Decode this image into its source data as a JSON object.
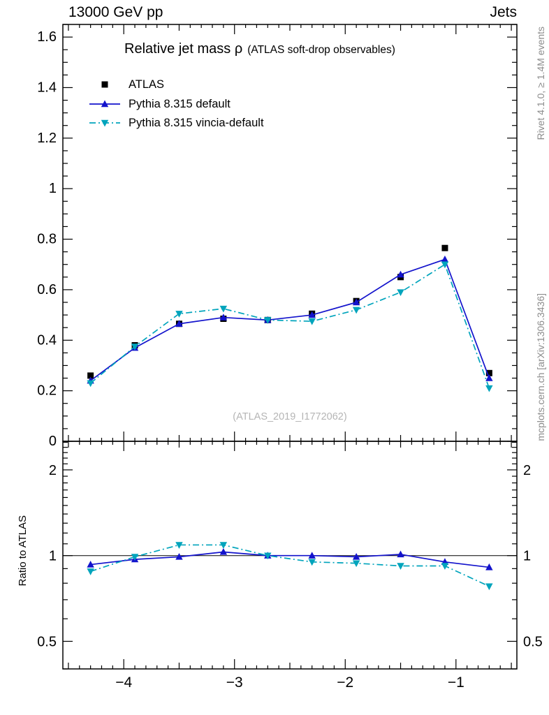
{
  "header": {
    "left": "13000 GeV pp",
    "right": "Jets"
  },
  "title": {
    "main": "Relative jet mass ρ",
    "sub": "(ATLAS soft-drop observables)"
  },
  "legend": [
    {
      "label": "ATLAS"
    },
    {
      "label": "Pythia 8.315 default"
    },
    {
      "label": "Pythia 8.315 vincia-default"
    }
  ],
  "watermark": "(ATLAS_2019_I1772062)",
  "side": {
    "rivet": "Rivet 4.1.0, ≥ 1.4M events",
    "mcplots": "mcplots.cern.ch [arXiv:1306.3436]"
  },
  "ratio_axis_label": "Ratio to ATLAS",
  "colors": {
    "atlas": "#000000",
    "pythia_default": "#1313cc",
    "pythia_vincia": "#00a4bc",
    "watermark": "#b5b5b5",
    "side_text": "#8c8c8c"
  },
  "chart_data": {
    "type": "line",
    "title": "Relative jet mass ρ (ATLAS soft-drop observables)",
    "xlabel": "",
    "ylabel": "",
    "legend_position": "top-left",
    "grid": false,
    "xlim": [
      -4.55,
      -0.45
    ],
    "xticks": [
      -4,
      -3,
      -2,
      -1
    ],
    "x": [
      -4.3,
      -3.9,
      -3.5,
      -3.1,
      -2.7,
      -2.3,
      -1.9,
      -1.5,
      -1.1,
      -0.7
    ],
    "main_panel": {
      "ylim": [
        0,
        1.65
      ],
      "yticks": [
        0,
        0.2,
        0.4,
        0.6,
        0.8,
        1,
        1.2,
        1.4,
        1.6
      ],
      "series": [
        {
          "name": "ATLAS",
          "marker": "square",
          "color": "#000000",
          "line": "none",
          "values": [
            0.26,
            0.38,
            0.465,
            0.485,
            0.48,
            0.505,
            0.555,
            0.65,
            0.765,
            0.27
          ]
        },
        {
          "name": "Pythia 8.315 default",
          "marker": "triangle-up",
          "color": "#1313cc",
          "line": "solid",
          "values": [
            0.24,
            0.37,
            0.465,
            0.49,
            0.48,
            0.5,
            0.55,
            0.66,
            0.72,
            0.25
          ]
        },
        {
          "name": "Pythia 8.315 vincia-default",
          "marker": "triangle-down",
          "color": "#00a4bc",
          "line": "dashdot",
          "values": [
            0.23,
            0.375,
            0.505,
            0.525,
            0.48,
            0.475,
            0.52,
            0.59,
            0.7,
            0.21
          ]
        }
      ]
    },
    "ratio_panel": {
      "ylabel": "Ratio to ATLAS",
      "yscale": "log",
      "ylim": [
        0.4,
        2.52
      ],
      "yticks": [
        0.5,
        1,
        2
      ],
      "reference_line": 1,
      "series": [
        {
          "name": "Pythia 8.315 default",
          "marker": "triangle-up",
          "color": "#1313cc",
          "line": "solid",
          "values": [
            0.93,
            0.97,
            0.99,
            1.03,
            1.0,
            1.0,
            0.99,
            1.01,
            0.95,
            0.91
          ]
        },
        {
          "name": "Pythia 8.315 vincia-default",
          "marker": "triangle-down",
          "color": "#00a4bc",
          "line": "dashdot",
          "values": [
            0.88,
            0.99,
            1.09,
            1.09,
            1.0,
            0.95,
            0.94,
            0.92,
            0.92,
            0.78
          ]
        }
      ]
    }
  }
}
